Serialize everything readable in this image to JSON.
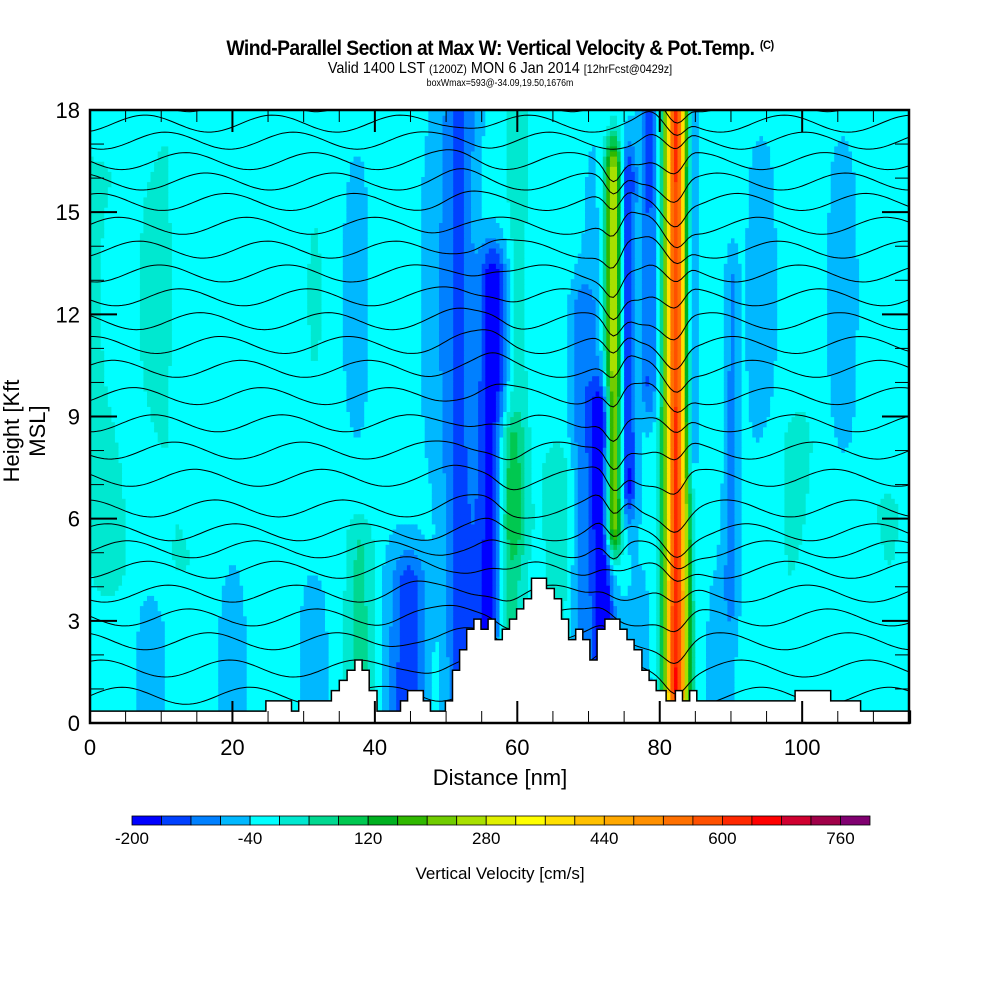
{
  "title": {
    "main": "Wind-Parallel Section at Max W: Vertical Velocity & Pot.Temp.",
    "copyright": "(C)",
    "valid_prefix": "Valid 1400 LST",
    "valid_utc": "(1200Z)",
    "valid_date": "MON 6 Jan 2014",
    "forecast": "[12hrFcst@0429z]",
    "box_info": "boxWmax=593@-34.09,19.50,1676m"
  },
  "chart_data": {
    "type": "heatmap",
    "title": "Wind-Parallel Section at Max W: Vertical Velocity & Pot.Temp.",
    "xlabel": "Distance [nm]",
    "ylabel": "Height [Kft MSL]",
    "xlim": [
      0,
      115
    ],
    "ylim": [
      0,
      18
    ],
    "x_ticks": [
      0,
      20,
      40,
      60,
      80,
      100
    ],
    "x_tick_labels": [
      "0",
      "20",
      "40",
      "60",
      "80",
      "100"
    ],
    "x_minor_step": 5,
    "y_ticks": [
      0,
      3,
      6,
      9,
      12,
      15,
      18
    ],
    "y_tick_labels": [
      "0",
      "3",
      "6",
      "9",
      "12",
      "15",
      "18"
    ],
    "y_minor_step": 1,
    "grid": false,
    "colorbar": {
      "label": "Vertical Velocity [cm/s]",
      "placement": "bottom",
      "min": -200,
      "step": 40,
      "tick_labels": [
        "-200",
        "-40",
        "120",
        "280",
        "440",
        "600",
        "760"
      ],
      "tick_values": [
        -200,
        -40,
        120,
        280,
        440,
        600,
        760
      ],
      "colors": [
        "#0000ff",
        "#0040ff",
        "#0080ff",
        "#00b8ff",
        "#00ffff",
        "#00e8d0",
        "#00d890",
        "#00c850",
        "#00b020",
        "#30b800",
        "#70cc00",
        "#a8e000",
        "#e0f000",
        "#ffff00",
        "#ffe000",
        "#ffc000",
        "#ffa800",
        "#ff9000",
        "#ff7000",
        "#ff5000",
        "#ff2800",
        "#ff0000",
        "#d00030",
        "#a00048",
        "#800070"
      ]
    },
    "background_value": -30,
    "vertical_velocity_features": [
      {
        "x_center": 12,
        "x_width": 3.5,
        "y_bottom": 5,
        "y_top": 18,
        "value": 20
      },
      {
        "x_center": 2,
        "x_width": 4,
        "y_bottom": 5,
        "y_top": 16,
        "value": 40
      },
      {
        "x_center": 25,
        "x_width": 3,
        "y_bottom": 8,
        "y_top": 18,
        "value": 20
      },
      {
        "x_center": 33,
        "x_width": 4,
        "y_bottom": 6,
        "y_top": 18,
        "value": 0
      },
      {
        "x_center": 38,
        "x_width": 2,
        "y_bottom": 0,
        "y_top": 5,
        "value": 60
      },
      {
        "x_center": 45,
        "x_width": 2.5,
        "y_bottom": 0,
        "y_top": 4,
        "value": -120
      },
      {
        "x_center": 52,
        "x_width": 2.5,
        "y_bottom": 0,
        "y_top": 18,
        "value": -110
      },
      {
        "x_center": 56.5,
        "x_width": 2,
        "y_bottom": 3,
        "y_top": 13,
        "value": -180
      },
      {
        "x_center": 58.5,
        "x_width": 2,
        "y_bottom": 0,
        "y_top": 8,
        "value": 110
      },
      {
        "x_center": 60,
        "x_width": 2,
        "y_bottom": 6,
        "y_top": 18,
        "value": 60
      },
      {
        "x_center": 66,
        "x_width": 2.5,
        "y_bottom": 0,
        "y_top": 7,
        "value": 60
      },
      {
        "x_center": 69,
        "x_width": 2,
        "y_bottom": 2,
        "y_top": 12,
        "value": -80
      },
      {
        "x_center": 72,
        "x_width": 1.6,
        "y_bottom": 1.5,
        "y_top": 9,
        "value": -200
      },
      {
        "x_center": 73.5,
        "x_width": 1.2,
        "y_bottom": 6,
        "y_top": 16,
        "value": 320
      },
      {
        "x_center": 75.5,
        "x_width": 1.2,
        "y_bottom": 7,
        "y_top": 16,
        "value": -160
      },
      {
        "x_center": 78.5,
        "x_width": 1.3,
        "y_bottom": 10,
        "y_top": 18,
        "value": -120
      },
      {
        "x_center": 82.3,
        "x_width": 1.6,
        "y_bottom": 1,
        "y_top": 18,
        "value": 640
      },
      {
        "x_center": 84.2,
        "x_width": 1,
        "y_bottom": 8,
        "y_top": 18,
        "value": -110
      },
      {
        "x_center": 90,
        "x_width": 1,
        "y_bottom": 4,
        "y_top": 13,
        "value": -80
      },
      {
        "x_center": 99,
        "x_width": 3,
        "y_bottom": 0,
        "y_top": 8,
        "value": 30
      },
      {
        "x_center": 112,
        "x_width": 3,
        "y_bottom": 0,
        "y_top": 6,
        "value": 30
      }
    ],
    "terrain_profile": {
      "distance_nm": [
        0,
        0,
        24.7,
        24.7,
        28.3,
        28.3,
        29.3,
        29.3,
        33.9,
        33.9,
        35.0,
        35.0,
        36.1,
        36.1,
        37.2,
        37.2,
        38.2,
        38.2,
        39.2,
        39.2,
        40.3,
        40.3,
        43.6,
        43.6,
        44.6,
        44.6,
        46.8,
        46.8,
        47.8,
        47.8,
        49.9,
        49.9,
        50.9,
        50.9,
        51.9,
        51.9,
        52.9,
        52.9,
        53.9,
        53.9,
        54.9,
        54.9,
        55.9,
        55.9,
        56.9,
        56.9,
        57.9,
        57.9,
        58.9,
        58.9,
        59.9,
        59.9,
        60.9,
        60.9,
        62.0,
        62.0,
        64.1,
        64.1,
        65.2,
        65.2,
        66.2,
        66.2,
        67.2,
        67.2,
        68.2,
        68.2,
        69.2,
        69.2,
        70.2,
        70.2,
        71.2,
        71.2,
        72.3,
        72.3,
        74.4,
        74.4,
        75.4,
        75.4,
        76.4,
        76.4,
        77.5,
        77.5,
        78.5,
        78.5,
        79.5,
        79.5,
        80.9,
        80.9,
        82.2,
        82.2,
        83.2,
        83.2,
        84.2,
        84.2,
        85.2,
        85.2,
        99.0,
        99.0,
        100.6,
        100.6,
        104.0,
        104.0,
        108.2,
        108.2,
        115.2,
        115.2
      ],
      "height_kft": [
        0,
        0.35,
        0.35,
        0.65,
        0.65,
        0.35,
        0.35,
        0.65,
        0.65,
        0.95,
        0.95,
        1.25,
        1.25,
        1.55,
        1.55,
        1.85,
        1.85,
        1.55,
        1.55,
        0.95,
        0.95,
        0.35,
        0.35,
        0.65,
        0.65,
        0.95,
        0.95,
        0.65,
        0.65,
        0.35,
        0.35,
        0.65,
        0.65,
        1.55,
        1.55,
        2.15,
        2.15,
        2.75,
        2.75,
        3.05,
        3.05,
        2.75,
        2.75,
        3.05,
        3.05,
        2.45,
        2.45,
        2.75,
        2.75,
        3.05,
        3.05,
        3.35,
        3.35,
        3.65,
        3.65,
        4.25,
        4.25,
        3.95,
        3.95,
        3.65,
        3.65,
        3.05,
        3.05,
        2.45,
        2.45,
        2.75,
        2.75,
        2.45,
        2.45,
        1.85,
        1.85,
        2.75,
        2.75,
        3.05,
        3.05,
        2.75,
        2.75,
        2.45,
        2.45,
        2.15,
        2.15,
        1.55,
        1.55,
        1.25,
        1.25,
        0.95,
        0.95,
        0.65,
        0.65,
        0.95,
        0.95,
        0.65,
        0.65,
        0.95,
        0.95,
        0.65,
        0.65,
        0.95,
        0.95,
        0.95,
        0.95,
        0.65,
        0.65,
        0.35,
        0.35,
        0
      ]
    },
    "isentropes": {
      "label": "Pot.Temp.",
      "count": 26,
      "base_heights_kft": [
        0.8,
        1.6,
        2.4,
        3.1,
        3.8,
        4.5,
        5.1,
        5.6,
        6.3,
        7.2,
        8.0,
        8.8,
        9.6,
        10.4,
        11.1,
        11.8,
        12.5,
        13.2,
        13.9,
        14.6,
        15.3,
        15.9,
        16.5,
        17.1,
        17.6,
        18.2
      ]
    }
  }
}
